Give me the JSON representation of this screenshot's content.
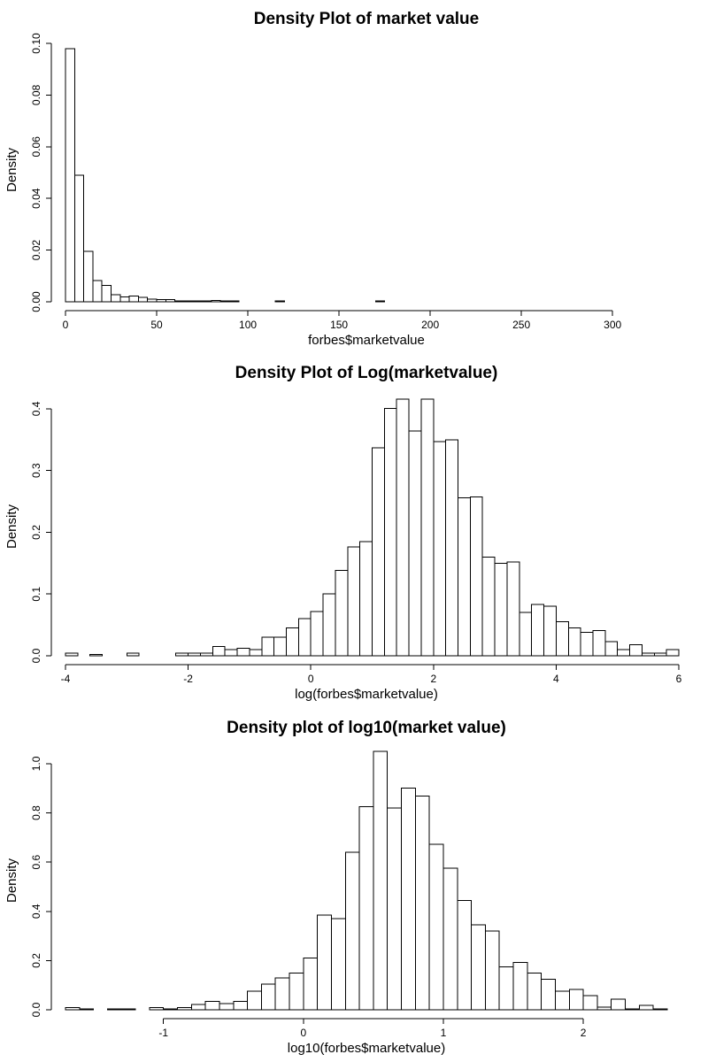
{
  "chart_data": [
    {
      "type": "bar",
      "title": "Density Plot of market value",
      "xlabel": "forbes$marketvalue",
      "ylabel": "Density",
      "bin_start": 0,
      "bin_width": 5,
      "values": [
        0.098,
        0.049,
        0.0195,
        0.0083,
        0.0063,
        0.0028,
        0.0018,
        0.0022,
        0.0017,
        0.0011,
        0.0009,
        0.0009,
        0.0004,
        0.0003,
        0.0003,
        0.0003,
        0.0006,
        0.0004,
        0.0004,
        0,
        0,
        0,
        0,
        0.0004,
        0,
        0,
        0,
        0,
        0,
        0,
        0,
        0,
        0,
        0,
        0.0004
      ],
      "xlim": [
        0,
        330
      ],
      "ylim": [
        0,
        0.1
      ],
      "xticks": [
        0,
        50,
        100,
        150,
        200,
        250,
        300
      ],
      "yticks": [
        0.0,
        0.02,
        0.04,
        0.06,
        0.08,
        0.1
      ],
      "ytick_labels": [
        "0.00",
        "0.02",
        "0.04",
        "0.06",
        "0.08",
        "0.10"
      ],
      "grid": false
    },
    {
      "type": "bar",
      "title": "Density Plot of Log(marketvalue)",
      "xlabel": "log(forbes$marketvalue)",
      "ylabel": "Density",
      "bin_start": -4,
      "bin_width": 0.2,
      "values": [
        0.004,
        0,
        0.002,
        0,
        0,
        0.004,
        0,
        0,
        0,
        0.004,
        0.004,
        0.004,
        0.015,
        0.01,
        0.012,
        0.01,
        0.03,
        0.03,
        0.045,
        0.06,
        0.072,
        0.1,
        0.138,
        0.176,
        0.185,
        0.337,
        0.401,
        0.416,
        0.364,
        0.416,
        0.347,
        0.35,
        0.256,
        0.257,
        0.16,
        0.15,
        0.152,
        0.07,
        0.083,
        0.08,
        0.055,
        0.045,
        0.038,
        0.041,
        0.023,
        0.01,
        0.018,
        0.004,
        0.004,
        0.01
      ],
      "xlim": [
        -4,
        6
      ],
      "ylim": [
        0,
        0.42
      ],
      "xticks": [
        -4,
        -2,
        0,
        2,
        4,
        6
      ],
      "yticks": [
        0.0,
        0.1,
        0.2,
        0.3,
        0.4
      ],
      "ytick_labels": [
        "0.0",
        "0.1",
        "0.2",
        "0.3",
        "0.4"
      ],
      "grid": false
    },
    {
      "type": "bar",
      "title": "Density plot of log10(market value)",
      "xlabel": "log10(forbes$marketvalue)",
      "ylabel": "Density",
      "bin_start": -1.7,
      "bin_width": 0.1,
      "values": [
        0.009,
        0.004,
        0,
        0.004,
        0.004,
        0,
        0.009,
        0.004,
        0.009,
        0.022,
        0.035,
        0.026,
        0.035,
        0.075,
        0.105,
        0.13,
        0.15,
        0.21,
        0.385,
        0.37,
        0.64,
        0.825,
        1.05,
        0.82,
        0.9,
        0.868,
        0.672,
        0.575,
        0.445,
        0.346,
        0.32,
        0.175,
        0.193,
        0.15,
        0.124,
        0.075,
        0.082,
        0.058,
        0.01,
        0.044,
        0.004,
        0.018,
        0.004
      ],
      "xlim": [
        -1.7,
        2.6
      ],
      "ylim": [
        0,
        1.05
      ],
      "xticks": [
        -1,
        0,
        1,
        2
      ],
      "yticks": [
        0.0,
        0.2,
        0.4,
        0.6,
        0.8,
        1.0
      ],
      "ytick_labels": [
        "0.0",
        "0.2",
        "0.4",
        "0.6",
        "0.8",
        "1.0"
      ],
      "grid": false
    }
  ]
}
